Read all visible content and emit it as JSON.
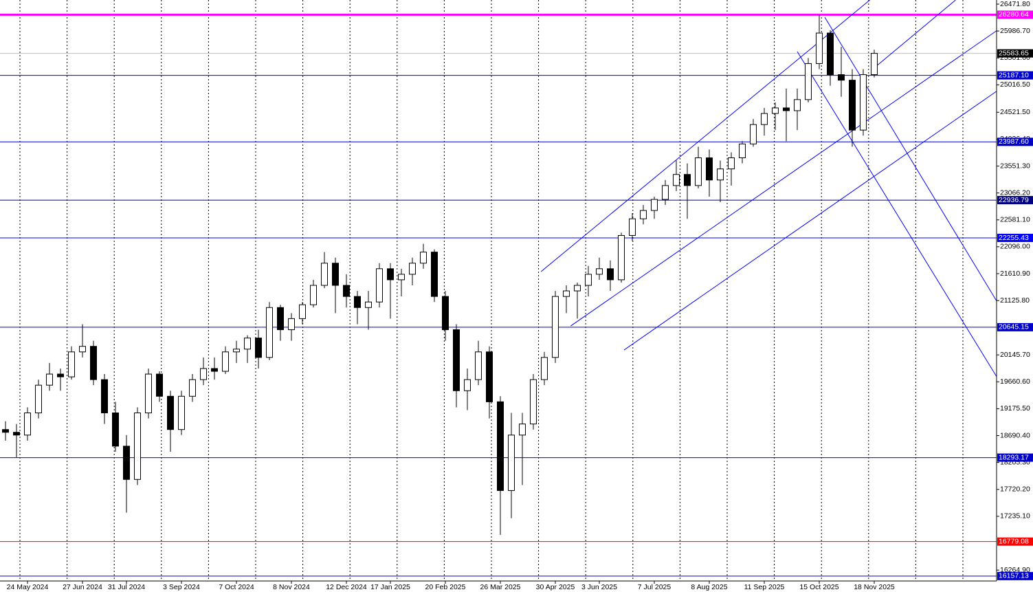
{
  "chart_data": {
    "type": "candlestick",
    "categories": [
      null,
      null,
      "24 May 2024",
      null,
      null,
      null,
      null,
      "27 Jun 2024",
      null,
      null,
      null,
      "31 Jul 2024",
      null,
      null,
      null,
      null,
      "3 Sep 2024",
      null,
      null,
      null,
      null,
      "7 Oct 2024",
      null,
      null,
      null,
      null,
      "8 Nov 2024",
      null,
      null,
      null,
      null,
      "12 Dec 2024",
      null,
      null,
      null,
      "17 Jan 2025",
      null,
      null,
      null,
      null,
      "20 Feb 2025",
      null,
      null,
      null,
      null,
      "26 Mar 2025",
      null,
      null,
      null,
      null,
      "30 Apr 2025",
      null,
      null,
      null,
      "3 Jun 2025",
      null,
      null,
      null,
      null,
      "7 Jul 2025",
      null,
      null,
      null,
      null,
      "8 Aug 2025",
      null,
      null,
      null,
      null,
      "11 Sep 2025",
      null,
      null,
      null,
      null,
      "15 Oct 2025",
      null,
      null,
      null,
      null,
      "18 Nov 2025"
    ],
    "ohlc": [
      [
        18800,
        18950,
        18600,
        18750
      ],
      [
        18750,
        18900,
        18300,
        18700
      ],
      [
        18700,
        19200,
        18600,
        19100
      ],
      [
        19100,
        19700,
        19000,
        19600
      ],
      [
        19600,
        20000,
        19500,
        19800
      ],
      [
        19800,
        19900,
        19500,
        19750
      ],
      [
        19750,
        20300,
        19700,
        20200
      ],
      [
        20200,
        20700,
        20100,
        20300
      ],
      [
        20300,
        20400,
        19600,
        19700
      ],
      [
        19700,
        19800,
        18900,
        19100
      ],
      [
        19100,
        19300,
        18400,
        18500
      ],
      [
        18500,
        18700,
        17300,
        17900
      ],
      [
        17900,
        19200,
        17800,
        19100
      ],
      [
        19100,
        19900,
        19000,
        19800
      ],
      [
        19800,
        19850,
        19300,
        19400
      ],
      [
        19400,
        19500,
        18400,
        18800
      ],
      [
        18800,
        19500,
        18700,
        19400
      ],
      [
        19400,
        19800,
        19300,
        19700
      ],
      [
        19700,
        20100,
        19600,
        19900
      ],
      [
        19900,
        20100,
        19700,
        19850
      ],
      [
        19850,
        20300,
        19800,
        20200
      ],
      [
        20200,
        20400,
        20000,
        20250
      ],
      [
        20250,
        20500,
        20000,
        20450
      ],
      [
        20450,
        20600,
        19900,
        20100
      ],
      [
        20100,
        21100,
        20050,
        21000
      ],
      [
        21000,
        21050,
        20400,
        20600
      ],
      [
        20600,
        20900,
        20400,
        20800
      ],
      [
        20800,
        21100,
        20700,
        21050
      ],
      [
        21050,
        21500,
        21000,
        21400
      ],
      [
        21400,
        22000,
        21350,
        21800
      ],
      [
        21800,
        21900,
        20900,
        21400
      ],
      [
        21400,
        21600,
        21000,
        21200
      ],
      [
        21200,
        21300,
        20700,
        21000
      ],
      [
        21000,
        21300,
        20600,
        21100
      ],
      [
        21100,
        21800,
        21000,
        21700
      ],
      [
        21700,
        21800,
        20800,
        21500
      ],
      [
        21500,
        21700,
        21200,
        21600
      ],
      [
        21600,
        21900,
        21400,
        21800
      ],
      [
        21800,
        22150,
        21700,
        22000
      ],
      [
        22000,
        22050,
        21100,
        21200
      ],
      [
        21200,
        21300,
        20400,
        20600
      ],
      [
        20600,
        20700,
        19200,
        19500
      ],
      [
        19500,
        19900,
        19150,
        19700
      ],
      [
        19700,
        20400,
        19600,
        20200
      ],
      [
        20200,
        20300,
        19000,
        19300
      ],
      [
        19300,
        19400,
        16900,
        17700
      ],
      [
        17700,
        19100,
        17200,
        18700
      ],
      [
        18700,
        19100,
        17800,
        18900
      ],
      [
        18900,
        19800,
        18800,
        19700
      ],
      [
        19700,
        20200,
        19600,
        20100
      ],
      [
        20100,
        21300,
        20000,
        21200
      ],
      [
        21200,
        21400,
        20900,
        21300
      ],
      [
        21300,
        21450,
        20800,
        21400
      ],
      [
        21400,
        21750,
        21200,
        21600
      ],
      [
        21600,
        21900,
        21500,
        21700
      ],
      [
        21700,
        21850,
        21300,
        21500
      ],
      [
        21500,
        22350,
        21450,
        22300
      ],
      [
        22300,
        22700,
        22200,
        22600
      ],
      [
        22600,
        22850,
        22500,
        22750
      ],
      [
        22750,
        23000,
        22600,
        22950
      ],
      [
        22950,
        23300,
        22850,
        23200
      ],
      [
        23200,
        23650,
        23100,
        23400
      ],
      [
        23400,
        23600,
        22600,
        23200
      ],
      [
        23200,
        23900,
        23150,
        23700
      ],
      [
        23700,
        23850,
        23000,
        23300
      ],
      [
        23300,
        23650,
        22900,
        23500
      ],
      [
        23500,
        23800,
        23200,
        23700
      ],
      [
        23700,
        24000,
        23600,
        23950
      ],
      [
        23950,
        24400,
        23900,
        24300
      ],
      [
        24300,
        24600,
        24100,
        24500
      ],
      [
        24500,
        24700,
        24200,
        24600
      ],
      [
        24600,
        24950,
        24000,
        24550
      ],
      [
        24550,
        24950,
        24200,
        24750
      ],
      [
        24750,
        25500,
        24700,
        25400
      ],
      [
        25400,
        26280,
        25300,
        25950
      ],
      [
        25950,
        26000,
        25000,
        25200
      ],
      [
        25200,
        25700,
        24800,
        25100
      ],
      [
        25100,
        25300,
        23900,
        24200
      ],
      [
        24200,
        25300,
        24100,
        25200
      ],
      [
        25200,
        25650,
        25150,
        25583.65
      ]
    ],
    "color": "#000000",
    "ylim": [
      15870,
      26546
    ],
    "yticks": [
      {
        "value": 26471.8,
        "label": "26471.80"
      },
      {
        "value": 25986.7,
        "label": "25986.70"
      },
      {
        "value": 25501.6,
        "label": "25501.60"
      },
      {
        "value": 25016.5,
        "label": "25016.50"
      },
      {
        "value": 24521.5,
        "label": "24521.50"
      },
      {
        "value": 24036.4,
        "label": "24036.40"
      },
      {
        "value": 23551.3,
        "label": "23551.30"
      },
      {
        "value": 23066.2,
        "label": "23066.20"
      },
      {
        "value": 22581.1,
        "label": "22581.10"
      },
      {
        "value": 22096,
        "label": "22096.00"
      },
      {
        "value": 21610.9,
        "label": "21610.90"
      },
      {
        "value": 21125.8,
        "label": "21125.80"
      },
      {
        "value": 20145.7,
        "label": "20145.70"
      },
      {
        "value": 19660.6,
        "label": "19660.60"
      },
      {
        "value": 19175.5,
        "label": "19175.50"
      },
      {
        "value": 18690.4,
        "label": "18690.40"
      },
      {
        "value": 18205.3,
        "label": "18205.30"
      },
      {
        "value": 17720.2,
        "label": "17720.20"
      },
      {
        "value": 17235.1,
        "label": "17235.10"
      },
      {
        "value": 16264.9,
        "label": "16264.90"
      }
    ],
    "levels": [
      {
        "value": 26280.64,
        "color": "#ff00ff"
      },
      {
        "value": 25583.65,
        "color": "#c0c0c0",
        "label_color": "#000000"
      },
      {
        "value": 25187.1,
        "label": "25187.10",
        "color": "#0000cd"
      },
      {
        "value": 23987.6,
        "label": "23987.60",
        "color": "#0000cd"
      },
      {
        "value": 22936.79,
        "color": "#000080"
      },
      {
        "value": 22255.43,
        "color": "#0000ff"
      },
      {
        "value": 20645.15,
        "color": "#0000cd"
      },
      {
        "value": 18293.17,
        "color": "#0000cd"
      },
      {
        "value": 16779.08,
        "color": "#ff0000"
      },
      {
        "value": 16157.13,
        "color": "#0000cd"
      }
    ],
    "trendlines": [
      {
        "x": [
          48.7,
          78.6
        ],
        "y": [
          21648,
          26546
        ],
        "color": "#0000ff"
      },
      {
        "x": [
          51.4,
          90.1
        ],
        "y": [
          20668,
          25988
        ],
        "color": "#0000ff"
      },
      {
        "x": [
          56.25,
          90.1
        ],
        "y": [
          20234,
          24897
        ],
        "color": "#0000ff"
      },
      {
        "x": [
          78.9,
          86.4
        ],
        "y": [
          25306,
          26546
        ],
        "color": "#0000ff"
      },
      {
        "x": [
          74.5,
          90.1
        ],
        "y": [
          26236,
          21127
        ],
        "color": "#0000ff"
      },
      {
        "x": [
          72,
          90.1
        ],
        "y": [
          25616,
          19763
        ],
        "color": "#0000ff"
      }
    ],
    "grid": true
  }
}
